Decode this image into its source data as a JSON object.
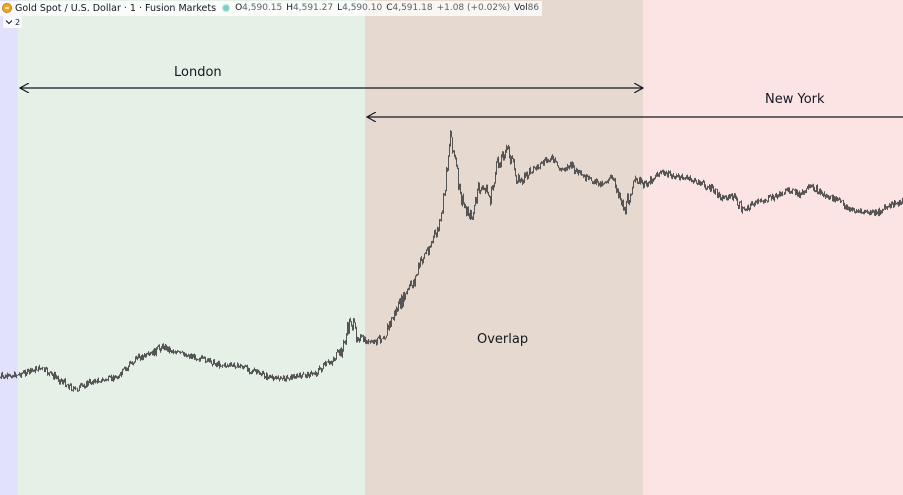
{
  "header": {
    "symbol": "Gold Spot / U.S. Dollar · 1 · Fusion Markets",
    "open_label": "O",
    "open": "4,590.15",
    "high_label": "H",
    "high": "4,591.27",
    "low_label": "L",
    "low": "4,590.10",
    "close_label": "C",
    "close": "4,591.18",
    "change": "+1.08 (+0.02%)",
    "vol_label": "Vol",
    "vol": "86"
  },
  "indicators_toggle": {
    "count": "2"
  },
  "sessions": {
    "london": {
      "label": "London",
      "color": "#e5f1e6"
    },
    "new_york": {
      "label": "New York",
      "color": "#fde4e4"
    },
    "overlap": {
      "label": "Overlap",
      "color": "#e6d9cf"
    },
    "asia": {
      "color": "#e2e1fb"
    }
  },
  "colors": {
    "price_line": "#555555",
    "arrow": "#131722"
  }
}
